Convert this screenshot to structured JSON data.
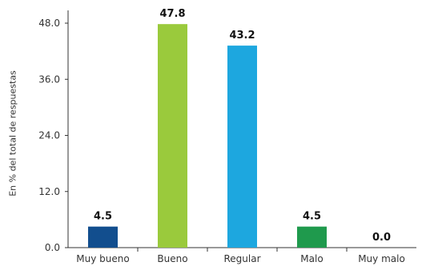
{
  "chart_data": {
    "type": "bar",
    "title": "",
    "xlabel": "",
    "ylabel": "En % del total de respuestas",
    "categories": [
      "Muy bueno",
      "Bueno",
      "Regular",
      "Malo",
      "Muy malo"
    ],
    "values": [
      4.5,
      47.8,
      43.2,
      4.5,
      0.0
    ],
    "value_labels": [
      "4.5",
      "47.8",
      "43.2",
      "4.5",
      "0.0"
    ],
    "colors": [
      "#124E8E",
      "#9ACA3C",
      "#1DA7DF",
      "#1F9A4D",
      "#FFFFFF"
    ],
    "ylim": [
      0,
      48
    ],
    "yticks": [
      0,
      12,
      24,
      36,
      48
    ],
    "ytick_labels": [
      "0.0",
      "12.0",
      "24.0",
      "36.0",
      "48.0"
    ],
    "grid": false,
    "legend": false
  }
}
